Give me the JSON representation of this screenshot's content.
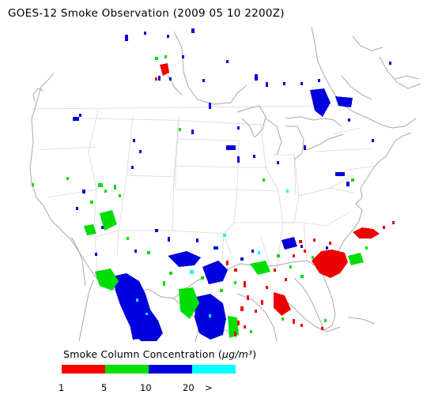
{
  "header": {
    "title": "GOES-12 Smoke Observation (2009 05 10  2200Z)"
  },
  "legend": {
    "title_prefix": "Smoke Column Concentration (",
    "title_unit": "μg/m³",
    "title_suffix": ")",
    "bins": [
      {
        "color": "#ff0000",
        "range": [
          1,
          5
        ]
      },
      {
        "color": "#00e000",
        "range": [
          5,
          10
        ]
      },
      {
        "color": "#0000e0",
        "range": [
          10,
          20
        ]
      },
      {
        "color": "#00ffff",
        "range": [
          20,
          null
        ]
      }
    ],
    "tick_labels": [
      "1",
      "5",
      "10",
      "20",
      ">"
    ]
  },
  "map": {
    "projection": "Lambert conformal (CONUS)",
    "region": "Continental United States, southern Canada, northern Mexico",
    "colors": {
      "land_outline": "#a8a8a8",
      "state_lines": "#d4d4d4",
      "background": "#ffffff"
    }
  }
}
